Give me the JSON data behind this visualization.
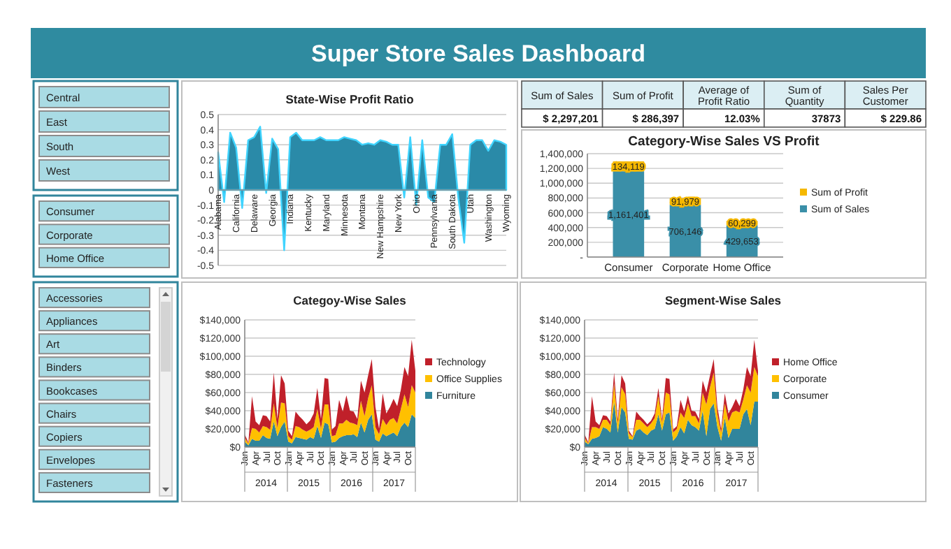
{
  "chart_data": [
    {
      "type": "other",
      "title": "Super Store Sales Dashboard"
    },
    {
      "type": "other",
      "categories": [
        "Central",
        "East",
        "South",
        "West"
      ]
    },
    {
      "type": "area",
      "title": "State-Wise Profit Ratio",
      "categories": [
        "Alabama",
        null,
        null,
        "California",
        null,
        null,
        "Delaware",
        null,
        null,
        "Georgia",
        null,
        null,
        "Indiana",
        null,
        null,
        "Kentucky",
        null,
        null,
        "Maryland",
        null,
        null,
        "Minnesota",
        null,
        null,
        "Montana",
        null,
        null,
        "New Hampshire",
        null,
        null,
        "New York",
        null,
        null,
        "Ohio",
        null,
        null,
        "Pennsylvania",
        null,
        null,
        "South Dakota",
        null,
        null,
        "Utah",
        null,
        null,
        "Washington",
        null,
        null,
        "Wyoming"
      ],
      "series": [
        {
          "color": "#2a8aa8",
          "values": [
            0.25,
            -0.08,
            0.38,
            0.28,
            -0.12,
            0.33,
            0.35,
            0.42,
            -0.02,
            0.34,
            0.27,
            -0.4,
            0.35,
            0.38,
            0.33,
            0.33,
            0.33,
            0.35,
            0.33,
            0.33,
            0.33,
            0.35,
            0.34,
            0.33,
            0.3,
            0.31,
            0.3,
            0.33,
            0.32,
            0.3,
            0.3,
            -0.05,
            0.35,
            -0.1,
            0.33,
            -0.05,
            -0.08,
            0.3,
            0.3,
            0.37,
            -0.05,
            -0.35,
            0.3,
            0.33,
            0.33,
            0.26,
            0.33,
            0.32,
            0.3
          ]
        }
      ],
      "ylim": [
        -0.5,
        0.5
      ],
      "yticks": [
        -0.5,
        -0.4,
        -0.3,
        -0.2,
        -0.1,
        0,
        0.1,
        0.2,
        0.3,
        0.4,
        0.5
      ],
      "grid": "y"
    },
    {
      "type": "other",
      "categories": [
        "Sum of Sales",
        "Sum of Profit",
        "Average of Profit Ratio",
        "Sum of Quantity",
        "Sales Per Customer"
      ],
      "value_labels": [
        "$ 2,297,201",
        "$ 286,397",
        "12.03%",
        "37873",
        "$ 229.86"
      ]
    },
    {
      "type": "bar",
      "title": "Category-Wise Sales VS Profit",
      "stacked": true,
      "categories": [
        "Consumer",
        "Corporate",
        "Home Office"
      ],
      "series": [
        {
          "name": "Sum of Sales",
          "color": "#3a8fa8",
          "values": [
            1161401,
            706146,
            429653
          ],
          "value_labels": [
            "1,161,401",
            "706,146",
            "429,653"
          ]
        },
        {
          "name": "Sum of Profit",
          "color": "#f5b800",
          "values": [
            134119,
            91979,
            60299
          ],
          "value_labels": [
            "134,119",
            "91,979",
            "60,299"
          ]
        }
      ],
      "ylim": [
        0,
        1400000
      ],
      "yticks": [
        {
          "value": 0,
          "label": "-"
        },
        {
          "value": 200000,
          "label": "200,000"
        },
        {
          "value": 400000,
          "label": "400,000"
        },
        {
          "value": 600000,
          "label": "600,000"
        },
        {
          "value": 800000,
          "label": "800,000"
        },
        {
          "value": 1000000,
          "label": "1,000,000"
        },
        {
          "value": 1200000,
          "label": "1,200,000"
        },
        {
          "value": 1400000,
          "label": "1,400,000"
        }
      ],
      "grid": "y",
      "legend": "right"
    },
    {
      "type": "other",
      "categories": [
        "Consumer",
        "Corporate",
        "Home Office"
      ]
    },
    {
      "type": "other",
      "categories": [
        "Accessories",
        "Appliances",
        "Art",
        "Binders",
        "Bookcases",
        "Chairs",
        "Copiers",
        "Envelopes",
        "Fasteners"
      ]
    },
    {
      "type": "area",
      "title": "Categoy-Wise Sales",
      "stacked": true,
      "categories": [
        "Jan",
        null,
        null,
        "Apr",
        null,
        null,
        "Jul",
        null,
        null,
        "Oct",
        null,
        null,
        "Jan",
        null,
        null,
        "Apr",
        null,
        null,
        "Jul",
        null,
        null,
        "Oct",
        null,
        null,
        "Jan",
        null,
        null,
        "Apr",
        null,
        null,
        "Jul",
        null,
        null,
        "Oct",
        null,
        null,
        "Jan",
        null,
        null,
        "Apr",
        null,
        null,
        "Jul",
        null,
        null,
        "Oct",
        null,
        null
      ],
      "series": [
        {
          "name": "Furniture",
          "color": "#31859c",
          "values": [
            6000,
            2000,
            9000,
            7000,
            7000,
            13000,
            10000,
            9000,
            28000,
            12000,
            22000,
            28000,
            6000,
            4000,
            11000,
            10000,
            9000,
            8000,
            11000,
            9000,
            23000,
            10000,
            27000,
            25000,
            5000,
            6000,
            10000,
            12000,
            13000,
            13000,
            14000,
            11000,
            27000,
            16000,
            30000,
            36000,
            8000,
            6000,
            15000,
            12000,
            14000,
            16000,
            12000,
            22000,
            27000,
            22000,
            36000,
            32000
          ]
        },
        {
          "name": "Office Supplies",
          "color": "#ffc000",
          "values": [
            4000,
            2000,
            12000,
            13000,
            9000,
            10000,
            12000,
            10000,
            20000,
            9000,
            27000,
            20000,
            6000,
            4000,
            12000,
            12000,
            10000,
            9000,
            8000,
            13000,
            19000,
            10000,
            20000,
            22000,
            7000,
            7000,
            16000,
            14000,
            17000,
            14000,
            12000,
            13000,
            24000,
            18000,
            24000,
            32000,
            14000,
            8000,
            16000,
            12000,
            16000,
            16000,
            14000,
            20000,
            31000,
            22000,
            32000,
            28000
          ]
        },
        {
          "name": "Technology",
          "color": "#c0202a",
          "values": [
            4000,
            1000,
            35000,
            8000,
            8000,
            12000,
            12000,
            9000,
            34000,
            10000,
            30000,
            22000,
            6000,
            4000,
            16000,
            12000,
            11000,
            8000,
            10000,
            15000,
            23000,
            11000,
            29000,
            28000,
            7000,
            10000,
            26000,
            13000,
            27000,
            13000,
            13000,
            7000,
            22000,
            26000,
            25000,
            29000,
            22000,
            6000,
            28000,
            13000,
            14000,
            21000,
            19000,
            21000,
            30000,
            34000,
            50000,
            24000
          ]
        }
      ],
      "ylim": [
        0,
        140000
      ],
      "yticks": [
        {
          "value": 0,
          "label": "$0"
        },
        {
          "value": 20000,
          "label": "$20,000"
        },
        {
          "value": 40000,
          "label": "$40,000"
        },
        {
          "value": 60000,
          "label": "$60,000"
        },
        {
          "value": 80000,
          "label": "$80,000"
        },
        {
          "value": 100000,
          "label": "$100,000"
        },
        {
          "value": 120000,
          "label": "$120,000"
        },
        {
          "value": 140000,
          "label": "$140,000"
        }
      ],
      "grid": "y",
      "legend": "right",
      "annotations": [
        "2014",
        "2015",
        "2016",
        "2017"
      ]
    },
    {
      "type": "area",
      "title": "Segment-Wise Sales",
      "stacked": true,
      "categories": [
        "Jan",
        null,
        null,
        "Apr",
        null,
        null,
        "Jul",
        null,
        null,
        "Oct",
        null,
        null,
        "Jan",
        null,
        null,
        "Apr",
        null,
        null,
        "Jul",
        null,
        null,
        "Oct",
        null,
        null,
        "Jan",
        null,
        null,
        "Apr",
        null,
        null,
        "Jul",
        null,
        null,
        "Oct",
        null,
        null,
        "Jan",
        null,
        null,
        "Apr",
        null,
        null,
        "Jul",
        null,
        null,
        "Oct",
        null,
        null
      ],
      "series": [
        {
          "name": "Consumer",
          "color": "#31859c",
          "values": [
            6000,
            3000,
            9000,
            10000,
            12000,
            22000,
            20000,
            16000,
            50000,
            16000,
            44000,
            38000,
            9000,
            8000,
            18000,
            20000,
            16000,
            13000,
            18000,
            20000,
            36000,
            18000,
            36000,
            38000,
            7000,
            12000,
            22000,
            15000,
            30000,
            24000,
            22000,
            18000,
            40000,
            12000,
            42000,
            48000,
            22000,
            7000,
            32000,
            10000,
            20000,
            20000,
            20000,
            36000,
            42000,
            24000,
            50000,
            50000
          ]
        },
        {
          "name": "Corporate",
          "color": "#ffc000",
          "values": [
            4000,
            1000,
            13000,
            12000,
            8000,
            8000,
            10000,
            8000,
            20000,
            10000,
            22000,
            20000,
            6000,
            3000,
            12000,
            10000,
            10000,
            9000,
            8000,
            12000,
            20000,
            9000,
            24000,
            20000,
            9000,
            8000,
            16000,
            17000,
            18000,
            10000,
            12000,
            8000,
            20000,
            35000,
            24000,
            34000,
            14000,
            9000,
            16000,
            18000,
            18000,
            20000,
            18000,
            16000,
            26000,
            36000,
            38000,
            28000
          ]
        },
        {
          "name": "Home Office",
          "color": "#c0202a",
          "values": [
            4000,
            1000,
            34000,
            6000,
            4000,
            5000,
            4000,
            4000,
            12000,
            5000,
            13000,
            12000,
            3000,
            1000,
            9000,
            4000,
            4000,
            3000,
            3000,
            5000,
            9000,
            4000,
            16000,
            17000,
            3000,
            3000,
            14000,
            7000,
            9000,
            6000,
            5000,
            5000,
            13000,
            13000,
            13000,
            15000,
            8000,
            4000,
            11000,
            9000,
            6000,
            13000,
            7000,
            11000,
            20000,
            18000,
            30000,
            6000
          ]
        }
      ],
      "ylim": [
        0,
        140000
      ],
      "yticks": [
        {
          "value": 0,
          "label": "$0"
        },
        {
          "value": 20000,
          "label": "$20,000"
        },
        {
          "value": 40000,
          "label": "$40,000"
        },
        {
          "value": 60000,
          "label": "$60,000"
        },
        {
          "value": 80000,
          "label": "$80,000"
        },
        {
          "value": 100000,
          "label": "$100,000"
        },
        {
          "value": 120000,
          "label": "$120,000"
        },
        {
          "value": 140000,
          "label": "$140,000"
        }
      ],
      "grid": "y",
      "legend": "right",
      "annotations": [
        "2014",
        "2015",
        "2016",
        "2017"
      ]
    }
  ]
}
